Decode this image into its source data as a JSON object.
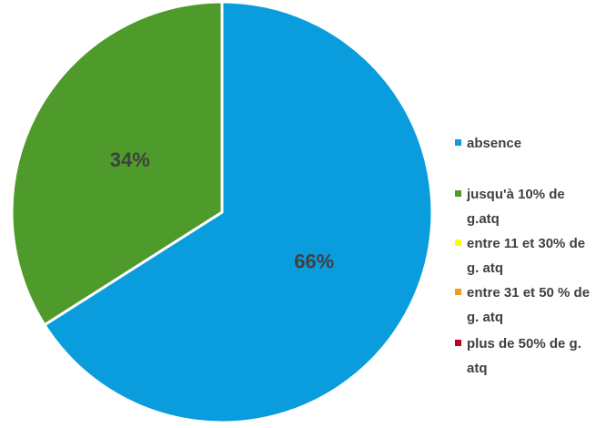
{
  "chart_data": {
    "type": "pie",
    "categories": [
      "absence",
      "jusqu'à 10% de g.atq",
      "entre 11 et 30% de g. atq",
      "entre 31 et 50 % de g. atq",
      "plus de  50% de g. atq"
    ],
    "values": [
      66,
      34,
      0,
      0,
      0
    ],
    "value_labels": [
      "66%",
      "34%",
      null,
      null,
      null
    ],
    "colors": [
      "#0a9ddd",
      "#4e9a2a",
      "#ffff00",
      "#f39a1e",
      "#c0001a"
    ],
    "legend": "right"
  }
}
